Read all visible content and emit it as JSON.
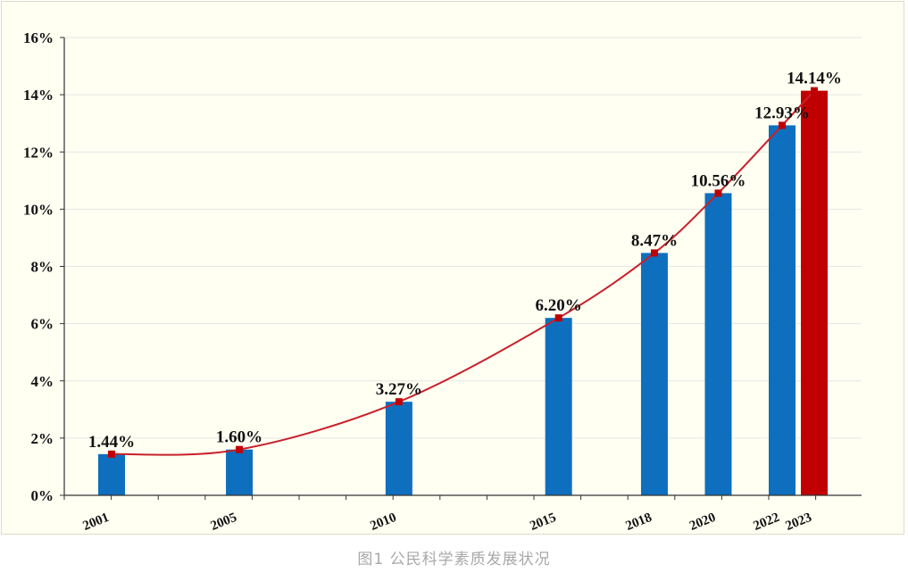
{
  "caption": "图1 公民科学素质发展状况",
  "chart_data": {
    "type": "bar",
    "x": [
      2001,
      2005,
      2010,
      2015,
      2018,
      2020,
      2022,
      2023
    ],
    "categories": [
      "2001",
      "2005",
      "2010",
      "2015",
      "2018",
      "2020",
      "2022",
      "2023"
    ],
    "values": [
      1.44,
      1.6,
      3.27,
      6.2,
      8.47,
      10.56,
      12.93,
      14.14
    ],
    "data_labels": [
      "1.44%",
      "1.60%",
      "3.27%",
      "6.20%",
      "8.47%",
      "10.56%",
      "12.93%",
      "14.14%"
    ],
    "overlay": "line",
    "ylim": [
      0,
      16
    ],
    "yticks": [
      "0%",
      "2%",
      "4%",
      "6%",
      "8%",
      "10%",
      "12%",
      "14%",
      "16%"
    ],
    "ytick_values": [
      0,
      2,
      4,
      6,
      8,
      10,
      12,
      14,
      16
    ],
    "grid": true,
    "title": "",
    "xlabel": "",
    "ylabel": "",
    "colors": {
      "bar": "#0e6fbe",
      "highlight_bar": "#c00000",
      "line": "#c8202a",
      "marker": "#c00000",
      "grid": "#e6e6e6"
    }
  }
}
